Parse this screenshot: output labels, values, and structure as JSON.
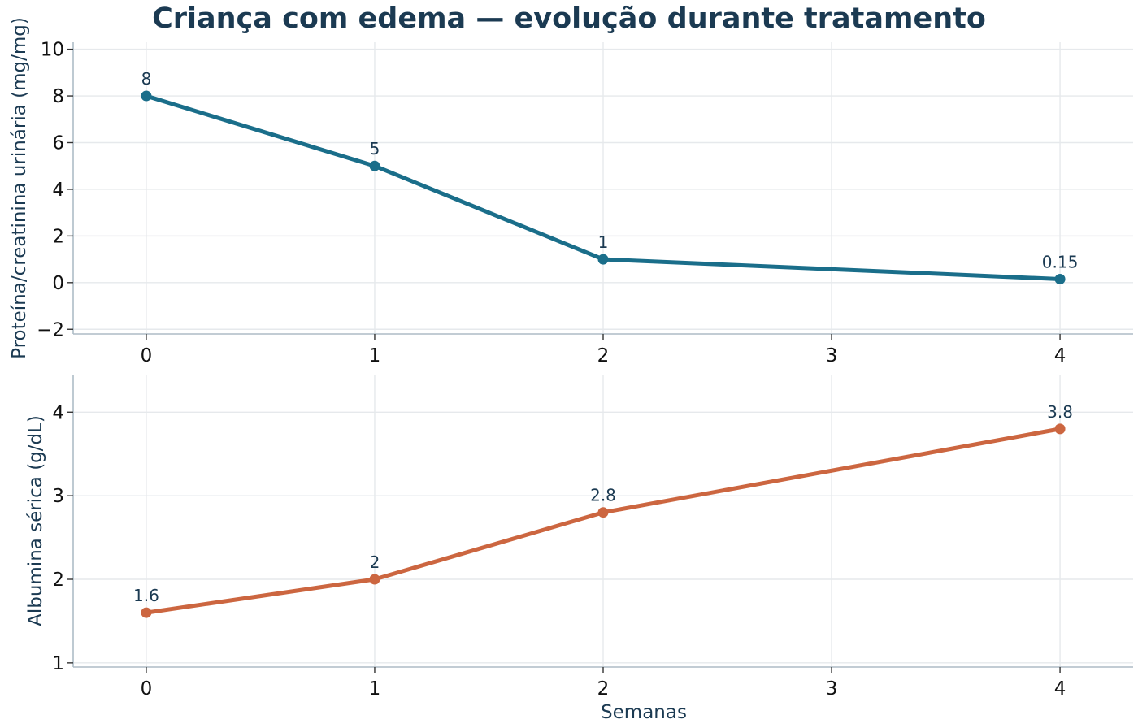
{
  "figure": {
    "title": "Criança com edema — evolução durante tratamento"
  },
  "chart_data": [
    {
      "type": "line",
      "x": [
        0,
        1,
        2,
        4
      ],
      "values": [
        8,
        5,
        1,
        0.15
      ],
      "data_labels": [
        "8",
        "5",
        "1",
        "0.15"
      ],
      "title": "",
      "xlabel": "",
      "ylabel": "Proteína/creatinina urinária (mg/mg)",
      "xlim": [
        -0.32,
        4.32
      ],
      "ylim": [
        -2.2,
        10.3
      ],
      "xticks": [
        0,
        1,
        2,
        3,
        4
      ],
      "xtick_labels": [
        "0",
        "1",
        "2",
        "3",
        "4"
      ],
      "yticks": [
        -2,
        0,
        2,
        4,
        6,
        8,
        10
      ],
      "ytick_labels": [
        "−2",
        "0",
        "2",
        "4",
        "6",
        "8",
        "10"
      ],
      "color": "#1a6e8a",
      "grid": true
    },
    {
      "type": "line",
      "x": [
        0,
        1,
        2,
        4
      ],
      "values": [
        1.6,
        2,
        2.8,
        3.8
      ],
      "data_labels": [
        "1.6",
        "2",
        "2.8",
        "3.8"
      ],
      "title": "",
      "xlabel": "Semanas",
      "ylabel": "Albumina sérica (g/dL)",
      "xlim": [
        -0.32,
        4.32
      ],
      "ylim": [
        0.95,
        4.45
      ],
      "xticks": [
        0,
        1,
        2,
        3,
        4
      ],
      "xtick_labels": [
        "0",
        "1",
        "2",
        "3",
        "4"
      ],
      "yticks": [
        1,
        2,
        3,
        4
      ],
      "ytick_labels": [
        "1",
        "2",
        "3",
        "4"
      ],
      "color": "#cc6640",
      "grid": true
    }
  ]
}
